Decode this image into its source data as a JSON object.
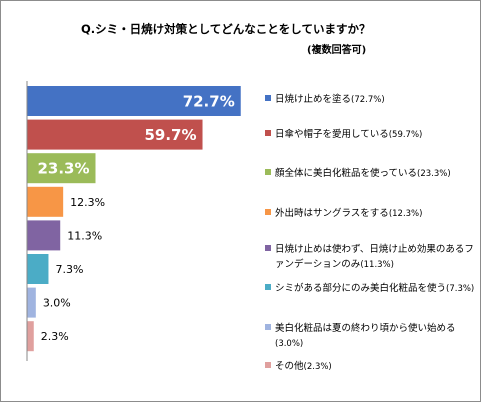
{
  "chart_data": {
    "type": "bar",
    "orientation": "horizontal",
    "title": "Q.シミ・日焼け対策としてどんなことをしていますか？",
    "subtitle": "(複数回答可)",
    "xlim": [
      0,
      100
    ],
    "unit": "%",
    "categories": [
      "日焼け止めを塗る",
      "日傘や帽子を愛用している",
      "顔全体に美白化粧品を使っている",
      "外出時はサングラスをする",
      "日焼け止めは使わず、日焼け止め効果のあるファンデーションのみ",
      "シミがある部分にのみ美白化粧品を使う",
      "美白化粧品は夏の終わり頃から使い始める",
      "その他"
    ],
    "values": [
      72.7,
      59.7,
      23.3,
      12.3,
      11.3,
      7.3,
      3.0,
      2.3
    ],
    "value_labels": [
      "72.7%",
      "59.7%",
      "23.3%",
      "12.3%",
      "11.3%",
      "7.3%",
      "3.0%",
      "2.3%"
    ],
    "colors": [
      "#4472c4",
      "#c0504d",
      "#9bbb59",
      "#f79646",
      "#8064a2",
      "#4bacc6",
      "#a0b4e0",
      "#e0a09e"
    ],
    "legend_position": "right",
    "legend_entries": [
      {
        "text": "日焼け止めを塗る",
        "pct": "(72.7%)"
      },
      {
        "text": "日傘や帽子を愛用している",
        "pct": "(59.7%)"
      },
      {
        "text": "顔全体に美白化粧品を使っている",
        "pct": "(23.3%)"
      },
      {
        "text": "外出時はサングラスをする",
        "pct": "(12.3%)"
      },
      {
        "text": "日焼け止めは使わず、日焼け止め効果のあるファンデーションのみ",
        "pct": "(11.3%)"
      },
      {
        "text": "シミがある部分にのみ美白化粧品を使う",
        "pct": "(7.3%)"
      },
      {
        "text": "美白化粧品は夏の終わり頃から使い始める",
        "pct": "(3.0%)"
      },
      {
        "text": "その他",
        "pct": "(2.3%)"
      }
    ]
  }
}
